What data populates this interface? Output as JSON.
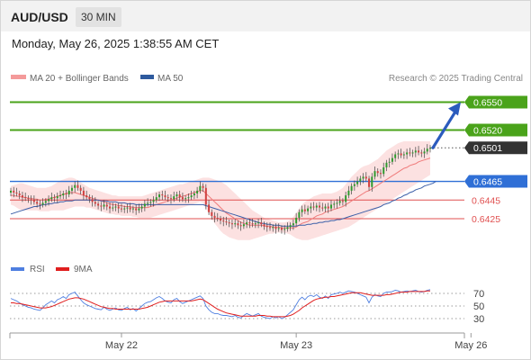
{
  "header": {
    "symbol": "AUD/USD",
    "timeframe": "30 MIN",
    "datetime": "Monday, May 26, 2025 1:38:55 AM CET"
  },
  "legend": {
    "ma20": "MA 20 + Bollinger Bands",
    "ma50": "MA 50",
    "copyright": "Research © 2025 Trading Central"
  },
  "rsi_legend": {
    "rsi": "RSI",
    "ma9": "9MA"
  },
  "colors": {
    "green": "#4aa31a",
    "blue": "#2f6fd6",
    "red": "#e05050",
    "dark": "#333333",
    "band": "#fbd7d7",
    "ma20": "#f07b7b",
    "ma50": "#3b5fa8",
    "up": "#2f9a2f",
    "down": "#d04040",
    "arrow": "#2b5bbd",
    "rsi": "#4f7fe0",
    "rsi_ma": "#e01f1f"
  },
  "chart_data": {
    "type": "candlestick",
    "title": "AUD/USD",
    "ylim": [
      0.6397,
      0.6563
    ],
    "x_labels": [
      {
        "label": "May 22",
        "x": 38
      },
      {
        "label": "May 23",
        "x": 98
      },
      {
        "label": "May 26",
        "x": 158
      }
    ],
    "levels": [
      {
        "value": 0.655,
        "label": "0.6550",
        "style": "resistance-filled"
      },
      {
        "value": 0.652,
        "label": "0.6520",
        "style": "resistance-filled"
      },
      {
        "value": 0.6501,
        "label": "0.6501",
        "style": "last-price"
      },
      {
        "value": 0.6465,
        "label": "0.6465",
        "style": "pivot-filled"
      },
      {
        "value": 0.6445,
        "label": "0.6445",
        "style": "support-text"
      },
      {
        "value": 0.6425,
        "label": "0.6425",
        "style": "support-text"
      }
    ],
    "close": [
      0.6455,
      0.6453,
      0.6452,
      0.645,
      0.6448,
      0.6447,
      0.6446,
      0.6445,
      0.6443,
      0.6441,
      0.644,
      0.6442,
      0.6444,
      0.6446,
      0.6448,
      0.6447,
      0.6449,
      0.645,
      0.6452,
      0.6451,
      0.6455,
      0.6458,
      0.6461,
      0.6458,
      0.6455,
      0.645,
      0.6448,
      0.6446,
      0.6443,
      0.6441,
      0.6439,
      0.6438,
      0.644,
      0.6438,
      0.6436,
      0.6437,
      0.6438,
      0.6436,
      0.6435,
      0.6436,
      0.6437,
      0.6435,
      0.6436,
      0.6434,
      0.6436,
      0.6438,
      0.6441,
      0.6442,
      0.6443,
      0.6445,
      0.6448,
      0.6451,
      0.645,
      0.6448,
      0.6447,
      0.6446,
      0.6449,
      0.6451,
      0.6448,
      0.6446,
      0.6447,
      0.6448,
      0.645,
      0.6452,
      0.6455,
      0.646,
      0.6458,
      0.644,
      0.6432,
      0.6428,
      0.6426,
      0.6425,
      0.6423,
      0.6422,
      0.6421,
      0.642,
      0.6419,
      0.642,
      0.6418,
      0.6417,
      0.6419,
      0.6421,
      0.642,
      0.6419,
      0.642,
      0.6421,
      0.6419,
      0.6417,
      0.6416,
      0.6415,
      0.6416,
      0.6414,
      0.6415,
      0.6413,
      0.6414,
      0.6416,
      0.6418,
      0.642,
      0.6426,
      0.6432,
      0.6435,
      0.6433,
      0.6436,
      0.6438,
      0.6437,
      0.6439,
      0.6437,
      0.6436,
      0.6438,
      0.6436,
      0.644,
      0.6441,
      0.6442,
      0.6444,
      0.6443,
      0.645,
      0.6455,
      0.646,
      0.6462,
      0.6465,
      0.6468,
      0.647,
      0.6468,
      0.6459,
      0.647,
      0.6476,
      0.6474,
      0.6473,
      0.648,
      0.6485,
      0.6486,
      0.649,
      0.6494,
      0.6495,
      0.6493,
      0.6494,
      0.6496,
      0.6495,
      0.6496,
      0.6498,
      0.6496,
      0.6495,
      0.6497,
      0.65,
      0.6501
    ],
    "ma20": [
      0.645,
      0.645,
      0.6449,
      0.6449,
      0.6448,
      0.6448,
      0.6447,
      0.6447,
      0.6446,
      0.6446,
      0.6445,
      0.6445,
      0.6446,
      0.6446,
      0.6447,
      0.6448,
      0.6449,
      0.645,
      0.6451,
      0.6452,
      0.6453,
      0.6453,
      0.6453,
      0.6452,
      0.6451,
      0.645,
      0.6449,
      0.6448,
      0.6447,
      0.6446,
      0.6445,
      0.6444,
      0.6443,
      0.6442,
      0.6441,
      0.644,
      0.644,
      0.6439,
      0.6439,
      0.6438,
      0.6438,
      0.6438,
      0.6437,
      0.6437,
      0.6437,
      0.6437,
      0.6437,
      0.6437,
      0.6438,
      0.6439,
      0.644,
      0.6441,
      0.6442,
      0.6443,
      0.6444,
      0.6445,
      0.6446,
      0.6447,
      0.6448,
      0.6449,
      0.645,
      0.6451,
      0.6452,
      0.6453,
      0.6454,
      0.6455,
      0.6455,
      0.6452,
      0.6449,
      0.6446,
      0.6443,
      0.644,
      0.6437,
      0.6434,
      0.6431,
      0.6429,
      0.6427,
      0.6425,
      0.6423,
      0.6421,
      0.642,
      0.6419,
      0.6418,
      0.6418,
      0.6418,
      0.6418,
      0.6418,
      0.6417,
      0.6417,
      0.6417,
      0.6416,
      0.6416,
      0.6416,
      0.6415,
      0.6415,
      0.6415,
      0.6415,
      0.6415,
      0.6416,
      0.6418,
      0.642,
      0.6421,
      0.6422,
      0.6424,
      0.6426,
      0.6428,
      0.6429,
      0.643,
      0.6432,
      0.6433,
      0.6434,
      0.6435,
      0.6436,
      0.6437,
      0.6438,
      0.644,
      0.6442,
      0.6444,
      0.6446,
      0.6448,
      0.645,
      0.6452,
      0.6454,
      0.6455,
      0.6457,
      0.6459,
      0.6461,
      0.6463,
      0.6465,
      0.6467,
      0.6469,
      0.6471,
      0.6473,
      0.6475,
      0.6477,
      0.6479,
      0.648,
      0.6482,
      0.6483,
      0.6484,
      0.6486,
      0.6487,
      0.6488,
      0.6489,
      0.649
    ],
    "upper_band": [
      0.646,
      0.6461,
      0.6462,
      0.6463,
      0.6463,
      0.6462,
      0.6461,
      0.646,
      0.6459,
      0.6458,
      0.6458,
      0.6458,
      0.6458,
      0.6459,
      0.646,
      0.6462,
      0.6464,
      0.6466,
      0.6467,
      0.6468,
      0.6469,
      0.6469,
      0.6468,
      0.6466,
      0.6464,
      0.6462,
      0.646,
      0.6458,
      0.6457,
      0.6456,
      0.6455,
      0.6454,
      0.6453,
      0.6452,
      0.6451,
      0.645,
      0.645,
      0.6449,
      0.6449,
      0.6449,
      0.6449,
      0.6449,
      0.6449,
      0.6449,
      0.6449,
      0.6449,
      0.645,
      0.6451,
      0.6452,
      0.6453,
      0.6454,
      0.6455,
      0.6456,
      0.6457,
      0.6458,
      0.6459,
      0.646,
      0.6461,
      0.6462,
      0.6462,
      0.6463,
      0.6464,
      0.6465,
      0.6466,
      0.6467,
      0.6468,
      0.6469,
      0.6469,
      0.6469,
      0.6468,
      0.6467,
      0.6466,
      0.6465,
      0.6463,
      0.6461,
      0.6458,
      0.6455,
      0.6452,
      0.6449,
      0.6446,
      0.6443,
      0.644,
      0.6437,
      0.6434,
      0.6432,
      0.643,
      0.6428,
      0.6426,
      0.6425,
      0.6424,
      0.6423,
      0.6422,
      0.6421,
      0.6421,
      0.6421,
      0.6422,
      0.6424,
      0.6427,
      0.6431,
      0.6436,
      0.644,
      0.6443,
      0.6445,
      0.6447,
      0.6449,
      0.645,
      0.6451,
      0.6452,
      0.6452,
      0.6452,
      0.6452,
      0.6453,
      0.6454,
      0.6456,
      0.6458,
      0.6462,
      0.6466,
      0.647,
      0.6473,
      0.6476,
      0.6479,
      0.6481,
      0.6482,
      0.6483,
      0.6485,
      0.6487,
      0.6489,
      0.6492,
      0.6495,
      0.6498,
      0.65,
      0.6502,
      0.6504,
      0.6506,
      0.6507,
      0.6508,
      0.6508,
      0.6508,
      0.6508,
      0.6508,
      0.6508,
      0.6508,
      0.6508,
      0.6508,
      0.6508
    ],
    "lower_band": [
      0.644,
      0.6439,
      0.6437,
      0.6435,
      0.6434,
      0.6434,
      0.6434,
      0.6434,
      0.6434,
      0.6434,
      0.6433,
      0.6433,
      0.6433,
      0.6433,
      0.6434,
      0.6434,
      0.6434,
      0.6434,
      0.6434,
      0.6435,
      0.6436,
      0.6437,
      0.6438,
      0.6438,
      0.6438,
      0.6438,
      0.6437,
      0.6437,
      0.6436,
      0.6435,
      0.6434,
      0.6433,
      0.6432,
      0.6431,
      0.643,
      0.643,
      0.6429,
      0.6429,
      0.6428,
      0.6428,
      0.6428,
      0.6428,
      0.6427,
      0.6427,
      0.6426,
      0.6426,
      0.6426,
      0.6426,
      0.6426,
      0.6427,
      0.6428,
      0.6429,
      0.643,
      0.6431,
      0.6432,
      0.6433,
      0.6434,
      0.6435,
      0.6436,
      0.6437,
      0.6438,
      0.6439,
      0.644,
      0.6441,
      0.6442,
      0.6443,
      0.6442,
      0.6436,
      0.643,
      0.6425,
      0.642,
      0.6416,
      0.6412,
      0.6409,
      0.6407,
      0.6405,
      0.6404,
      0.6403,
      0.6402,
      0.6402,
      0.6402,
      0.6402,
      0.6402,
      0.6403,
      0.6404,
      0.6405,
      0.6406,
      0.6407,
      0.6408,
      0.6409,
      0.6409,
      0.641,
      0.641,
      0.641,
      0.641,
      0.6409,
      0.6408,
      0.6406,
      0.6404,
      0.6403,
      0.6402,
      0.6402,
      0.6402,
      0.6403,
      0.6404,
      0.6405,
      0.6406,
      0.6407,
      0.6408,
      0.6409,
      0.641,
      0.6411,
      0.6412,
      0.6413,
      0.6414,
      0.6415,
      0.6416,
      0.6418,
      0.642,
      0.6422,
      0.6424,
      0.6426,
      0.6428,
      0.643,
      0.6432,
      0.6434,
      0.6436,
      0.6438,
      0.644,
      0.6442,
      0.6444,
      0.6446,
      0.6448,
      0.645,
      0.6452,
      0.6454,
      0.6456,
      0.6458,
      0.646,
      0.6462,
      0.6464,
      0.6466,
      0.6468,
      0.647,
      0.6472
    ],
    "ma50": [
      0.643,
      0.6431,
      0.6432,
      0.6433,
      0.6434,
      0.6435,
      0.6436,
      0.6437,
      0.6438,
      0.6438,
      0.6439,
      0.644,
      0.644,
      0.6441,
      0.6441,
      0.6442,
      0.6442,
      0.6443,
      0.6443,
      0.6444,
      0.6444,
      0.6444,
      0.6445,
      0.6445,
      0.6445,
      0.6445,
      0.6445,
      0.6445,
      0.6445,
      0.6445,
      0.6445,
      0.6444,
      0.6444,
      0.6444,
      0.6443,
      0.6443,
      0.6443,
      0.6442,
      0.6442,
      0.6442,
      0.6441,
      0.6441,
      0.6441,
      0.644,
      0.644,
      0.644,
      0.644,
      0.644,
      0.644,
      0.644,
      0.644,
      0.644,
      0.644,
      0.644,
      0.644,
      0.644,
      0.644,
      0.644,
      0.644,
      0.644,
      0.644,
      0.644,
      0.644,
      0.644,
      0.644,
      0.644,
      0.644,
      0.6439,
      0.6438,
      0.6437,
      0.6436,
      0.6435,
      0.6434,
      0.6433,
      0.6432,
      0.6431,
      0.643,
      0.6429,
      0.6428,
      0.6427,
      0.6426,
      0.6425,
      0.6424,
      0.6423,
      0.6422,
      0.6421,
      0.642,
      0.642,
      0.6419,
      0.6419,
      0.6418,
      0.6418,
      0.6418,
      0.6417,
      0.6417,
      0.6417,
      0.6417,
      0.6417,
      0.6417,
      0.6418,
      0.6418,
      0.6418,
      0.6419,
      0.6419,
      0.642,
      0.642,
      0.6421,
      0.6421,
      0.6422,
      0.6422,
      0.6423,
      0.6423,
      0.6424,
      0.6424,
      0.6425,
      0.6426,
      0.6427,
      0.6428,
      0.6429,
      0.643,
      0.6431,
      0.6432,
      0.6433,
      0.6434,
      0.6435,
      0.6436,
      0.6437,
      0.6438,
      0.644,
      0.6441,
      0.6442,
      0.6444,
      0.6445,
      0.6447,
      0.6448,
      0.645,
      0.6451,
      0.6453,
      0.6454,
      0.6456,
      0.6457,
      0.6458,
      0.646,
      0.6461,
      0.6462,
      0.6463,
      0.6465
    ],
    "projection": {
      "from": 0.6501,
      "to": 0.655
    },
    "rsi": {
      "levels": [
        70,
        50,
        30
      ],
      "ylim": [
        10,
        90
      ],
      "values": [
        62,
        60,
        58,
        55,
        52,
        50,
        48,
        47,
        45,
        44,
        43,
        47,
        52,
        55,
        58,
        55,
        60,
        62,
        65,
        62,
        68,
        70,
        72,
        66,
        60,
        55,
        52,
        50,
        48,
        46,
        45,
        44,
        48,
        45,
        43,
        45,
        47,
        44,
        43,
        46,
        48,
        44,
        46,
        42,
        46,
        50,
        54,
        56,
        57,
        60,
        63,
        65,
        62,
        58,
        56,
        55,
        60,
        62,
        57,
        54,
        56,
        58,
        60,
        62,
        64,
        66,
        62,
        50,
        44,
        40,
        38,
        38,
        36,
        35,
        35,
        34,
        33,
        35,
        32,
        31,
        35,
        38,
        36,
        34,
        36,
        38,
        34,
        32,
        31,
        30,
        33,
        31,
        33,
        30,
        32,
        36,
        40,
        44,
        52,
        60,
        64,
        60,
        65,
        67,
        65,
        68,
        64,
        62,
        66,
        62,
        68,
        69,
        70,
        72,
        70,
        72,
        74,
        73,
        72,
        70,
        68,
        66,
        64,
        55,
        64,
        68,
        66,
        65,
        70,
        72,
        72,
        73,
        75,
        74,
        72,
        73,
        74,
        73,
        74,
        75,
        73,
        72,
        73,
        75,
        76
      ],
      "ma9": [
        55,
        55,
        54,
        54,
        53,
        52,
        51,
        50,
        49,
        48,
        47,
        47,
        47,
        48,
        49,
        51,
        53,
        55,
        57,
        59,
        61,
        62,
        63,
        63,
        62,
        61,
        59,
        57,
        55,
        53,
        51,
        49,
        48,
        47,
        46,
        46,
        45,
        45,
        45,
        45,
        45,
        45,
        45,
        45,
        45,
        46,
        47,
        48,
        50,
        52,
        54,
        56,
        57,
        58,
        58,
        58,
        58,
        58,
        58,
        58,
        58,
        58,
        58,
        59,
        60,
        61,
        60,
        57,
        54,
        51,
        48,
        45,
        43,
        41,
        39,
        38,
        37,
        36,
        35,
        34,
        34,
        34,
        34,
        34,
        34,
        35,
        35,
        35,
        34,
        34,
        33,
        33,
        33,
        33,
        33,
        34,
        35,
        37,
        40,
        43,
        47,
        50,
        53,
        56,
        59,
        61,
        62,
        63,
        64,
        64,
        65,
        65,
        66,
        67,
        68,
        69,
        70,
        71,
        71,
        71,
        71,
        70,
        69,
        68,
        67,
        67,
        67,
        67,
        67,
        68,
        68,
        69,
        70,
        71,
        72,
        72,
        72,
        73,
        73,
        73,
        73,
        73,
        73,
        74,
        74
      ]
    }
  }
}
